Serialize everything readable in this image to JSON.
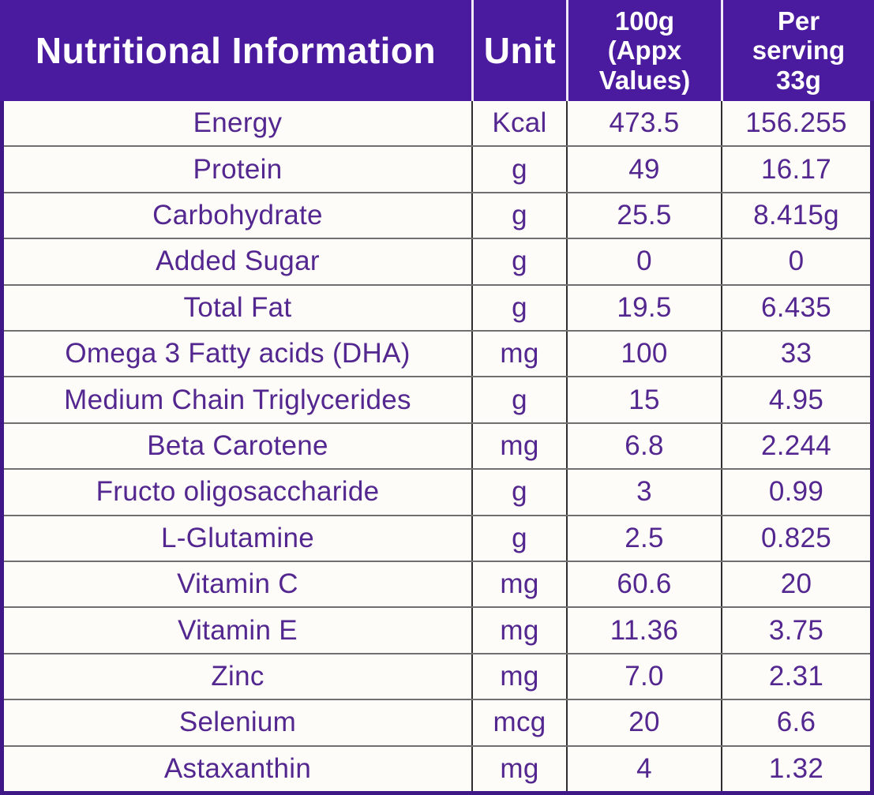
{
  "table": {
    "columns": [
      {
        "label": "Nutritional Information"
      },
      {
        "label": "Unit"
      },
      {
        "label": "100g\n(Appx\nValues)"
      },
      {
        "label": "Per\nserving\n33g"
      }
    ],
    "rows": [
      {
        "name": "Energy",
        "unit": "Kcal",
        "per_100g": "473.5",
        "per_serving": "156.255"
      },
      {
        "name": "Protein",
        "unit": "g",
        "per_100g": "49",
        "per_serving": "16.17"
      },
      {
        "name": "Carbohydrate",
        "unit": "g",
        "per_100g": "25.5",
        "per_serving": "8.415g"
      },
      {
        "name": "Added Sugar",
        "unit": "g",
        "per_100g": "0",
        "per_serving": "0"
      },
      {
        "name": "Total Fat",
        "unit": "g",
        "per_100g": "19.5",
        "per_serving": "6.435"
      },
      {
        "name": "Omega 3 Fatty acids (DHA)",
        "unit": "mg",
        "per_100g": "100",
        "per_serving": "33"
      },
      {
        "name": "Medium Chain Triglycerides",
        "unit": "g",
        "per_100g": "15",
        "per_serving": "4.95"
      },
      {
        "name": "Beta Carotene",
        "unit": "mg",
        "per_100g": "6.8",
        "per_serving": "2.244"
      },
      {
        "name": "Fructo oligosaccharide",
        "unit": "g",
        "per_100g": "3",
        "per_serving": "0.99"
      },
      {
        "name": "L-Glutamine",
        "unit": "g",
        "per_100g": "2.5",
        "per_serving": "0.825"
      },
      {
        "name": "Vitamin C",
        "unit": "mg",
        "per_100g": "60.6",
        "per_serving": "20"
      },
      {
        "name": "Vitamin E",
        "unit": "mg",
        "per_100g": "11.36",
        "per_serving": "3.75"
      },
      {
        "name": "Zinc",
        "unit": "mg",
        "per_100g": "7.0",
        "per_serving": "2.31"
      },
      {
        "name": "Selenium",
        "unit": "mcg",
        "per_100g": "20",
        "per_serving": "6.6"
      },
      {
        "name": "Astaxanthin",
        "unit": "mg",
        "per_100g": "4",
        "per_serving": "1.32"
      }
    ],
    "colors": {
      "header_background": "#4a1b9e",
      "header_text": "#ffffff",
      "body_text": "#53278f",
      "grid_vertical": "#2f2f2f",
      "grid_horizontal": "#707070",
      "outer_border": "#3f1787",
      "background": "#fdfcf8"
    }
  }
}
